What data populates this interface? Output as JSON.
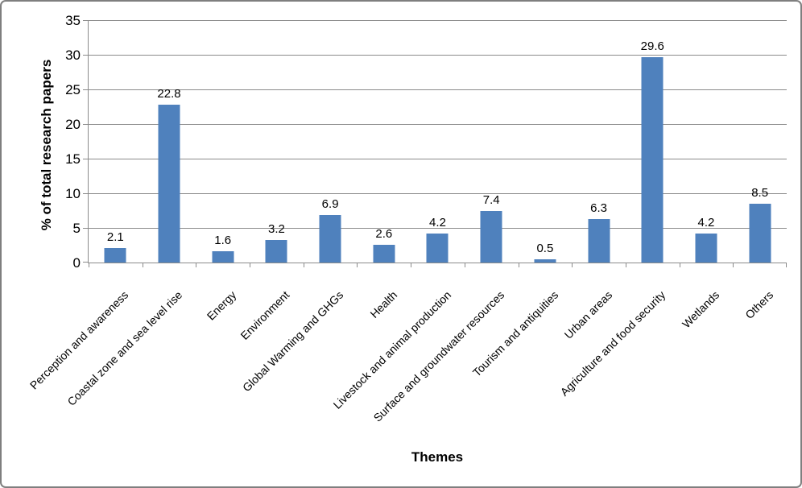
{
  "chart_data": {
    "type": "bar",
    "title": "",
    "xlabel": "Themes",
    "ylabel": "% of total research papers",
    "categories": [
      "Perception and awareness",
      "Coastal zone and sea level rise",
      "Energy",
      "Environment",
      "Global Warming and GHGs",
      "Health",
      "Livestock and animal production",
      "Surface and groundwater resources",
      "Tourism and antiquities",
      "Urban areas",
      "Agriculture and food security",
      "Wetlands",
      "Others"
    ],
    "values": [
      2.1,
      22.8,
      1.6,
      3.2,
      6.9,
      2.6,
      4.2,
      7.4,
      0.5,
      6.3,
      29.6,
      4.2,
      8.5
    ],
    "value_labels": [
      "2.1",
      "22.8",
      "1.6",
      "3.2",
      "6.9",
      "2.6",
      "4.2",
      "7.4",
      "0.5",
      "6.3",
      "29.6",
      "4.2",
      "8.5"
    ],
    "ylim": [
      0,
      35
    ],
    "ytick_step": 5,
    "ytick_labels": [
      "0",
      "5",
      "10",
      "15",
      "20",
      "25",
      "30",
      "35"
    ],
    "grid": true,
    "legend": false,
    "bar_color": "#4f81bd",
    "axis_color": "#8b8b8b",
    "frame_border_color": "#7f7f7f",
    "text_color": "#000000"
  }
}
